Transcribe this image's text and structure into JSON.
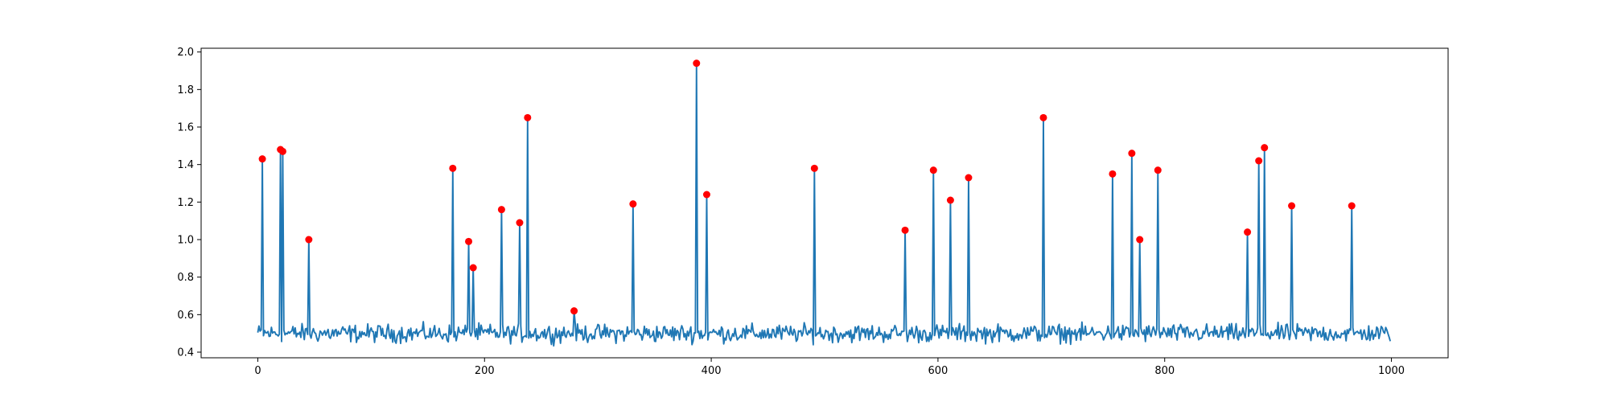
{
  "chart_data": {
    "type": "line",
    "title": "",
    "xlabel": "",
    "ylabel": "",
    "xlim": [
      -50,
      1050
    ],
    "ylim": [
      0.37,
      2.02
    ],
    "x_ticks": [
      0,
      200,
      400,
      600,
      800,
      1000
    ],
    "x_tick_labels": [
      "0",
      "200",
      "400",
      "600",
      "800",
      "1000"
    ],
    "y_ticks": [
      0.4,
      0.6,
      0.8,
      1.0,
      1.2,
      1.4,
      1.6,
      1.8,
      2.0
    ],
    "y_tick_labels": [
      "0.4",
      "0.6",
      "0.8",
      "1.0",
      "1.2",
      "1.4",
      "1.6",
      "1.8",
      "2.0"
    ],
    "grid": false,
    "series": [
      {
        "kind": "line",
        "color": "#1f77b4",
        "x_start": 0,
        "x_step": 1,
        "count": 1000,
        "baseline": 0.5,
        "noise_range": [
          0.43,
          0.57
        ],
        "spikes": [
          {
            "x": 4,
            "y": 1.43
          },
          {
            "x": 20,
            "y": 1.48
          },
          {
            "x": 22,
            "y": 1.47
          },
          {
            "x": 45,
            "y": 1.0
          },
          {
            "x": 172,
            "y": 1.38
          },
          {
            "x": 186,
            "y": 0.99
          },
          {
            "x": 190,
            "y": 0.85
          },
          {
            "x": 215,
            "y": 1.16
          },
          {
            "x": 231,
            "y": 1.09
          },
          {
            "x": 238,
            "y": 1.65
          },
          {
            "x": 279,
            "y": 0.62
          },
          {
            "x": 331,
            "y": 1.19
          },
          {
            "x": 387,
            "y": 1.94
          },
          {
            "x": 396,
            "y": 1.24
          },
          {
            "x": 491,
            "y": 1.38
          },
          {
            "x": 571,
            "y": 1.05
          },
          {
            "x": 596,
            "y": 1.37
          },
          {
            "x": 611,
            "y": 1.21
          },
          {
            "x": 627,
            "y": 1.33
          },
          {
            "x": 693,
            "y": 1.65
          },
          {
            "x": 754,
            "y": 1.35
          },
          {
            "x": 771,
            "y": 1.46
          },
          {
            "x": 778,
            "y": 1.0
          },
          {
            "x": 794,
            "y": 1.37
          },
          {
            "x": 873,
            "y": 1.04
          },
          {
            "x": 883,
            "y": 1.42
          },
          {
            "x": 888,
            "y": 1.49
          },
          {
            "x": 912,
            "y": 1.18
          },
          {
            "x": 965,
            "y": 1.18
          }
        ]
      },
      {
        "kind": "scatter",
        "color": "#ff0000",
        "points": [
          {
            "x": 4,
            "y": 1.43
          },
          {
            "x": 20,
            "y": 1.48
          },
          {
            "x": 22,
            "y": 1.47
          },
          {
            "x": 45,
            "y": 1.0
          },
          {
            "x": 172,
            "y": 1.38
          },
          {
            "x": 186,
            "y": 0.99
          },
          {
            "x": 190,
            "y": 0.85
          },
          {
            "x": 215,
            "y": 1.16
          },
          {
            "x": 231,
            "y": 1.09
          },
          {
            "x": 238,
            "y": 1.65
          },
          {
            "x": 279,
            "y": 0.62
          },
          {
            "x": 331,
            "y": 1.19
          },
          {
            "x": 387,
            "y": 1.94
          },
          {
            "x": 396,
            "y": 1.24
          },
          {
            "x": 491,
            "y": 1.38
          },
          {
            "x": 571,
            "y": 1.05
          },
          {
            "x": 596,
            "y": 1.37
          },
          {
            "x": 611,
            "y": 1.21
          },
          {
            "x": 627,
            "y": 1.33
          },
          {
            "x": 693,
            "y": 1.65
          },
          {
            "x": 754,
            "y": 1.35
          },
          {
            "x": 771,
            "y": 1.46
          },
          {
            "x": 778,
            "y": 1.0
          },
          {
            "x": 794,
            "y": 1.37
          },
          {
            "x": 873,
            "y": 1.04
          },
          {
            "x": 883,
            "y": 1.42
          },
          {
            "x": 888,
            "y": 1.49
          },
          {
            "x": 912,
            "y": 1.18
          },
          {
            "x": 965,
            "y": 1.18
          }
        ]
      }
    ]
  }
}
